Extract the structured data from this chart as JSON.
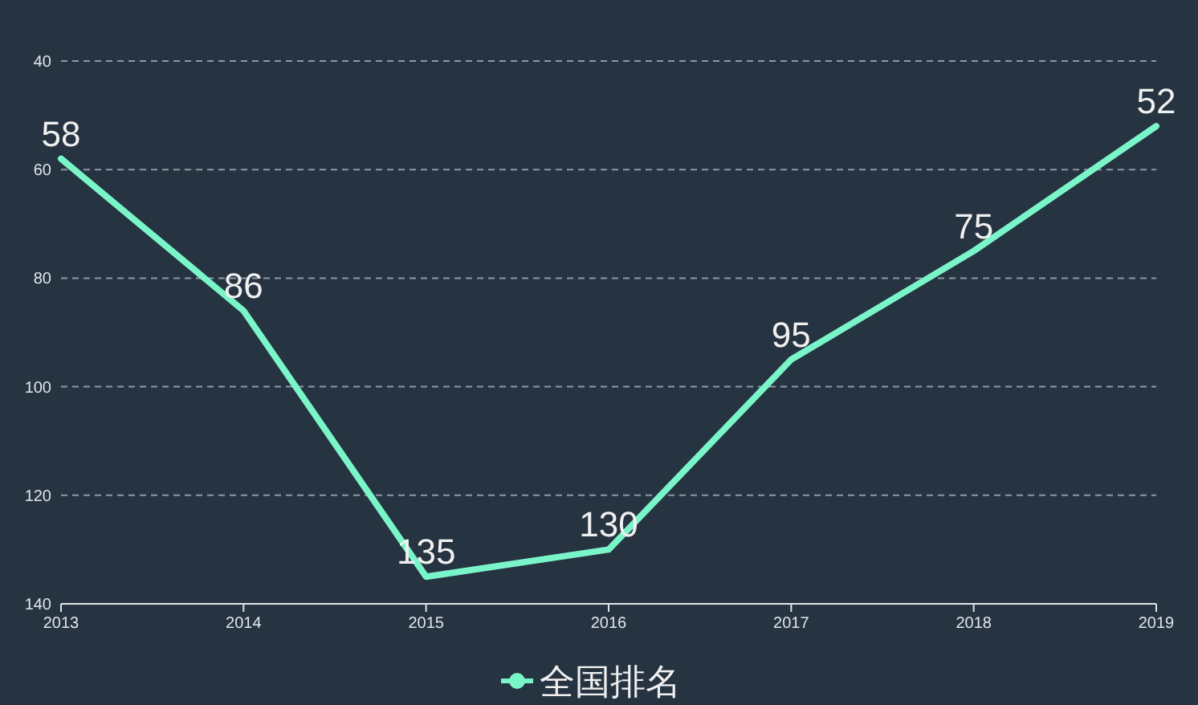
{
  "chart_data": {
    "type": "line",
    "categories": [
      "2013",
      "2014",
      "2015",
      "2016",
      "2017",
      "2018",
      "2019"
    ],
    "series": [
      {
        "name": "全国排名",
        "color": "#7af5c9",
        "values": [
          58,
          86,
          135,
          130,
          95,
          75,
          52
        ]
      }
    ],
    "ylim": [
      140,
      40
    ],
    "yticks": [
      40,
      60,
      80,
      100,
      120,
      140
    ],
    "grid": "y",
    "legend": "bottom",
    "data_labels": true,
    "line_style": "solid"
  }
}
